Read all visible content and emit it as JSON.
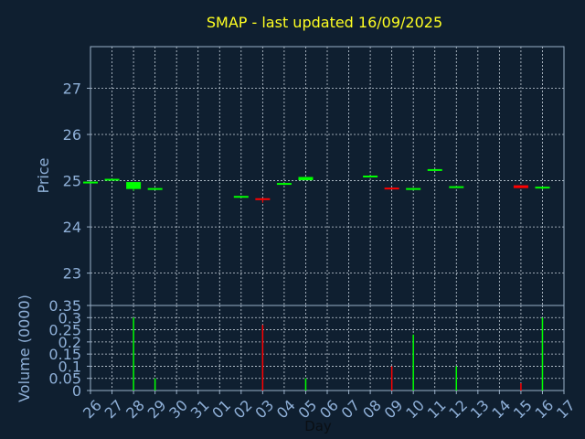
{
  "chart_data": [
    {
      "type": "candlestick",
      "title": "SMAP - last updated 16/09/2025",
      "ylabel": "Price",
      "ylim": [
        22.3,
        27.9
      ],
      "yticks": [
        23,
        24,
        25,
        26,
        27
      ],
      "grid": true,
      "colors": {
        "up": "#00ff00",
        "down": "#ff0000"
      },
      "categories": [
        "26",
        "27",
        "28",
        "29",
        "30",
        "31",
        "01",
        "02",
        "03",
        "04",
        "05",
        "06",
        "07",
        "08",
        "09",
        "10",
        "11",
        "12",
        "13",
        "14",
        "15",
        "16",
        "17"
      ],
      "candles": [
        {
          "x": "26",
          "open": 24.96,
          "close": 24.98,
          "high": 24.98,
          "low": 24.96
        },
        {
          "x": "27",
          "open": 25.02,
          "close": 25.04,
          "high": 25.04,
          "low": 25.02
        },
        {
          "x": "28",
          "open": 24.82,
          "close": 24.97,
          "high": 24.97,
          "low": 24.78
        },
        {
          "x": "29",
          "open": 24.82,
          "close": 24.84,
          "high": 24.84,
          "low": 24.82
        },
        {
          "x": "02",
          "open": 24.65,
          "close": 24.67,
          "high": 24.67,
          "low": 24.65
        },
        {
          "x": "03",
          "open": 24.62,
          "close": 24.59,
          "high": 24.62,
          "low": 24.52
        },
        {
          "x": "04",
          "open": 24.93,
          "close": 24.95,
          "high": 24.95,
          "low": 24.93
        },
        {
          "x": "05",
          "open": 25.01,
          "close": 25.08,
          "high": 25.08,
          "low": 25.01
        },
        {
          "x": "08",
          "open": 25.09,
          "close": 25.11,
          "high": 25.11,
          "low": 25.09
        },
        {
          "x": "09",
          "open": 24.85,
          "close": 24.83,
          "high": 24.85,
          "low": 24.83
        },
        {
          "x": "10",
          "open": 24.82,
          "close": 24.84,
          "high": 24.84,
          "low": 24.79
        },
        {
          "x": "11",
          "open": 25.23,
          "close": 25.25,
          "high": 25.25,
          "low": 25.23
        },
        {
          "x": "12",
          "open": 24.86,
          "close": 24.88,
          "high": 24.88,
          "low": 24.86
        },
        {
          "x": "15",
          "open": 24.9,
          "close": 24.84,
          "high": 24.9,
          "low": 24.84
        },
        {
          "x": "16",
          "open": 24.84,
          "close": 24.87,
          "high": 24.87,
          "low": 24.81
        }
      ]
    },
    {
      "type": "bar",
      "ylabel": "Volume (0000)",
      "xlabel": "Day",
      "ylim": [
        0,
        0.35
      ],
      "yticks": [
        0,
        0.05,
        0.1,
        0.15,
        0.2,
        0.25,
        0.3,
        0.35
      ],
      "yticklabels": [
        "0",
        "0.05",
        "0.1",
        "0.15",
        "0.2",
        "0.25",
        "0.3",
        "0.35"
      ],
      "grid": true,
      "categories": [
        "26",
        "27",
        "28",
        "29",
        "30",
        "31",
        "01",
        "02",
        "03",
        "04",
        "05",
        "06",
        "07",
        "08",
        "09",
        "10",
        "11",
        "12",
        "13",
        "14",
        "15",
        "16",
        "17"
      ],
      "bars": [
        {
          "x": "28",
          "value": 0.3,
          "color": "#00ff00"
        },
        {
          "x": "29",
          "value": 0.05,
          "color": "#00ff00"
        },
        {
          "x": "03",
          "value": 0.27,
          "color": "#ff0000"
        },
        {
          "x": "05",
          "value": 0.05,
          "color": "#00ff00"
        },
        {
          "x": "09",
          "value": 0.1,
          "color": "#ff0000"
        },
        {
          "x": "10",
          "value": 0.23,
          "color": "#00ff00"
        },
        {
          "x": "12",
          "value": 0.1,
          "color": "#00ff00"
        },
        {
          "x": "15",
          "value": 0.03,
          "color": "#ff0000"
        },
        {
          "x": "16",
          "value": 0.3,
          "color": "#00ff00"
        }
      ]
    }
  ]
}
